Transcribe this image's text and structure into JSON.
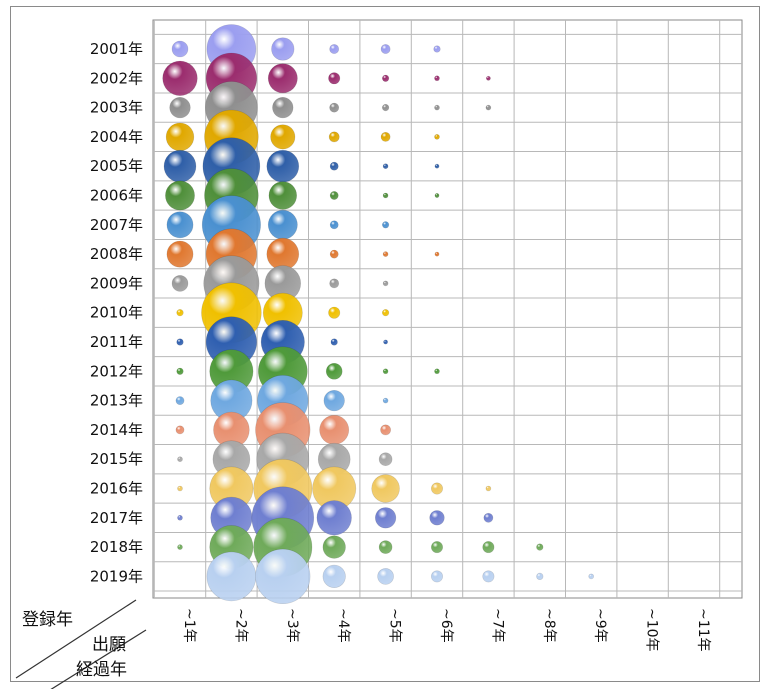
{
  "chart_data": {
    "type": "bubble",
    "corner_labels": {
      "row_header": "登録年",
      "col_header_line1": "出願",
      "col_header_line2": "経過年"
    },
    "y_categories": [
      "2001年",
      "2002年",
      "2003年",
      "2004年",
      "2005年",
      "2006年",
      "2007年",
      "2008年",
      "2009年",
      "2010年",
      "2011年",
      "2012年",
      "2013年",
      "2014年",
      "2015年",
      "2016年",
      "2017年",
      "2018年",
      "2019年"
    ],
    "x_categories": [
      "1年~",
      "2年~",
      "3年~",
      "4年~",
      "5年~",
      "6年~",
      "7年~",
      "8年~",
      "9年~",
      "10年~",
      "11年~"
    ],
    "x_tick_text": [
      "~1年",
      "~2年",
      "~3年",
      "~4年",
      "~5年",
      "~6年",
      "~7年",
      "~8年",
      "~9年",
      "~10年",
      "~11年"
    ],
    "grid": true,
    "row_colors": [
      "#9b9ef0",
      "#9b2d6e",
      "#8f8f8f",
      "#e0a800",
      "#2f5fa8",
      "#4f8f3a",
      "#4a90d0",
      "#e07830",
      "#9a9a9a",
      "#f0c000",
      "#2f5fb0",
      "#4f9a3a",
      "#6fa8e0",
      "#e89070",
      "#a8a8a8",
      "#f0c860",
      "#6f7fd0",
      "#6faa5a",
      "#b8d0f0"
    ],
    "values": [
      [
        3,
        28,
        6,
        1,
        1,
        0.5,
        0,
        0,
        0,
        0,
        0
      ],
      [
        14,
        30,
        10,
        1.5,
        0.5,
        0.3,
        0.2,
        0,
        0,
        0,
        0
      ],
      [
        5,
        32,
        5,
        1,
        0.5,
        0.3,
        0.3,
        0,
        0,
        0,
        0
      ],
      [
        9,
        34,
        7,
        1.2,
        1,
        0.3,
        0,
        0,
        0,
        0,
        0
      ],
      [
        12,
        38,
        12,
        0.8,
        0.3,
        0.2,
        0,
        0,
        0,
        0,
        0
      ],
      [
        10,
        34,
        9,
        0.8,
        0.3,
        0.2,
        0,
        0,
        0,
        0,
        0
      ],
      [
        8,
        40,
        10,
        0.8,
        0.5,
        0,
        0,
        0,
        0,
        0,
        0
      ],
      [
        8,
        30,
        12,
        0.8,
        0.3,
        0.2,
        0,
        0,
        0,
        0,
        0
      ],
      [
        3,
        36,
        15,
        1,
        0.3,
        0,
        0,
        0,
        0,
        0,
        0
      ],
      [
        0.5,
        42,
        18,
        1.5,
        0.5,
        0,
        0,
        0,
        0,
        0,
        0
      ],
      [
        0.5,
        30,
        22,
        0.5,
        0.2,
        0,
        0,
        0,
        0,
        0,
        0
      ],
      [
        0.5,
        22,
        28,
        3,
        0.3,
        0.3,
        0,
        0,
        0,
        0,
        0
      ],
      [
        0.8,
        20,
        30,
        5,
        0.3,
        0,
        0,
        0,
        0,
        0,
        0
      ],
      [
        0.8,
        15,
        35,
        10,
        1.2,
        0,
        0,
        0,
        0,
        0,
        0
      ],
      [
        0.3,
        16,
        32,
        12,
        2,
        0,
        0,
        0,
        0,
        0,
        0
      ],
      [
        0.3,
        22,
        40,
        22,
        9,
        1.5,
        0.3,
        0,
        0,
        0,
        0
      ],
      [
        0.3,
        20,
        45,
        14,
        5,
        2.5,
        1,
        0,
        0,
        0,
        0
      ],
      [
        0.3,
        22,
        40,
        6,
        2,
        1.5,
        1.5,
        0.5,
        0,
        0,
        0
      ],
      [
        0,
        28,
        35,
        6,
        3,
        1.5,
        1.5,
        0.5,
        0.3,
        0,
        0
      ]
    ]
  }
}
